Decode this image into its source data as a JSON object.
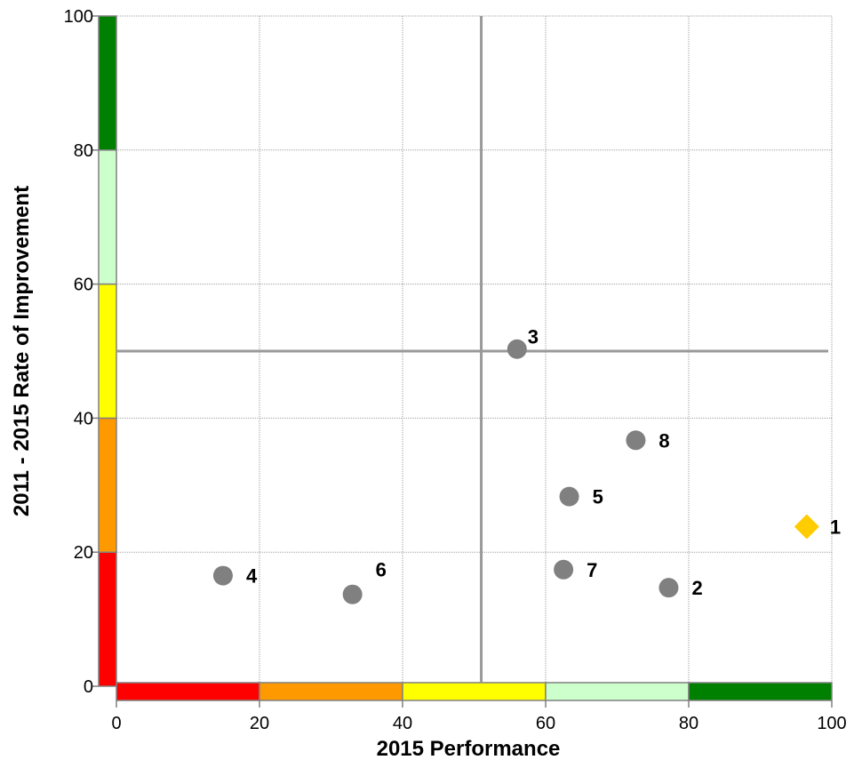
{
  "chart_data": {
    "type": "scatter",
    "xlabel": "2015 Performance",
    "ylabel": "2011 - 2015 Rate of Improvement",
    "xlim": [
      0,
      100
    ],
    "ylim": [
      0,
      100
    ],
    "xticks": [
      0,
      20,
      40,
      60,
      80,
      100
    ],
    "yticks": [
      0,
      20,
      40,
      60,
      80,
      100
    ],
    "grid": true,
    "reference_lines": {
      "vertical_x": 51,
      "horizontal_y": 50
    },
    "color_bands": [
      {
        "from": 0,
        "to": 20,
        "color": "#ff0000"
      },
      {
        "from": 20,
        "to": 40,
        "color": "#ff9900"
      },
      {
        "from": 40,
        "to": 60,
        "color": "#ffff00"
      },
      {
        "from": 60,
        "to": 80,
        "color": "#ccffcc"
      },
      {
        "from": 80,
        "to": 100,
        "color": "#008000"
      }
    ],
    "points": [
      {
        "label": "1",
        "x": 96.5,
        "y": 23.8,
        "shape": "diamond",
        "color": "#ffcc00"
      },
      {
        "label": "2",
        "x": 77.2,
        "y": 14.7,
        "shape": "circle",
        "color": "#808080"
      },
      {
        "label": "3",
        "x": 56.0,
        "y": 50.3,
        "shape": "circle",
        "color": "#808080"
      },
      {
        "label": "4",
        "x": 14.9,
        "y": 16.5,
        "shape": "circle",
        "color": "#808080"
      },
      {
        "label": "5",
        "x": 63.3,
        "y": 28.3,
        "shape": "circle",
        "color": "#808080"
      },
      {
        "label": "6",
        "x": 33.0,
        "y": 13.7,
        "shape": "circle",
        "color": "#808080"
      },
      {
        "label": "7",
        "x": 62.5,
        "y": 17.4,
        "shape": "circle",
        "color": "#808080"
      },
      {
        "label": "8",
        "x": 72.6,
        "y": 36.7,
        "shape": "circle",
        "color": "#808080"
      }
    ]
  }
}
